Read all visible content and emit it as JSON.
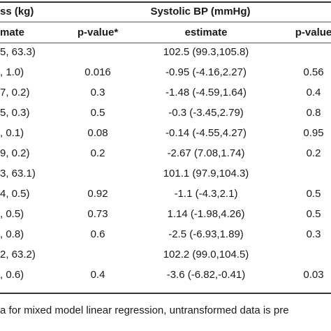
{
  "headers": {
    "group1": "ss (kg)",
    "group2": "Systolic BP (mmHg)",
    "col_estimate_left": "mate",
    "col_pvalue_1": "p-value*",
    "col_estimate_2": "estimate",
    "col_pvalue_2": "p-value"
  },
  "rows": [
    {
      "c1": "5, 63.3)",
      "c2": "",
      "c3": "102.5 (99.3,105.8)",
      "c4": ""
    },
    {
      "c1": ", 1.0)",
      "c2": "0.016",
      "c3": "-0.95 (-4.16,2.27)",
      "c4": "0.56"
    },
    {
      "c1": "7, 0.2)",
      "c2": "0.3",
      "c3": "-1.48 (-4.59,1.64)",
      "c4": "0.4"
    },
    {
      "c1": "5, 0.3)",
      "c2": "0.5",
      "c3": "-0.3 (-3.45,2.79)",
      "c4": "0.8"
    },
    {
      "c1": ", 0.1)",
      "c2": "0.08",
      "c3": "-0.14 (-4.55,4.27)",
      "c4": "0.95"
    },
    {
      "c1": "9, 0.2)",
      "c2": "0.2",
      "c3": "-2.67 (7.08,1.74)",
      "c4": "0.2"
    },
    {
      "c1": "3, 63.1)",
      "c2": "",
      "c3": "101.1 (97.9,104.3)",
      "c4": ""
    },
    {
      "c1": "4, 0.5)",
      "c2": "0.92",
      "c3": "-1.1 (-4.3,2.1)",
      "c4": "0.5"
    },
    {
      "c1": ", 0.5)",
      "c2": "0.73",
      "c3": "1.14 (-1.98,4.26)",
      "c4": "0.5"
    },
    {
      "c1": ", 0.8)",
      "c2": "0.6",
      "c3": "-2.5 (-6.93,1.89)",
      "c4": "0.3"
    },
    {
      "c1": "2, 63.2)",
      "c2": "",
      "c3": "102.2 (99.0,104.5)",
      "c4": ""
    },
    {
      "c1": ", 0.6)",
      "c2": "0.4",
      "c3": "-3.6 (-6.82,-0.41)",
      "c4": "0.03"
    }
  ],
  "footnote": "a for mixed model linear regression, untransformed data is pre"
}
